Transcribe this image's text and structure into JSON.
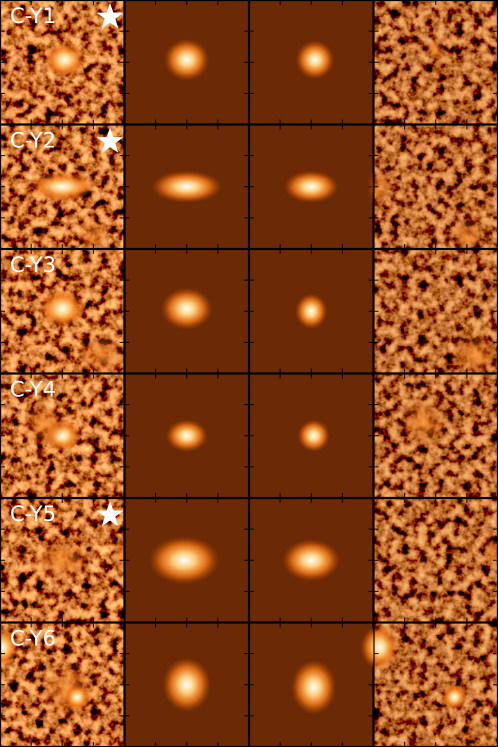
{
  "rows": [
    {
      "label": "C-Y1",
      "star": true
    },
    {
      "label": "C-Y2",
      "star": true
    },
    {
      "label": "C-Y3",
      "star": false
    },
    {
      "label": "C-Y4",
      "star": false
    },
    {
      "label": "C-Y5",
      "star": true
    },
    {
      "label": "C-Y6",
      "star": false
    }
  ]
}
